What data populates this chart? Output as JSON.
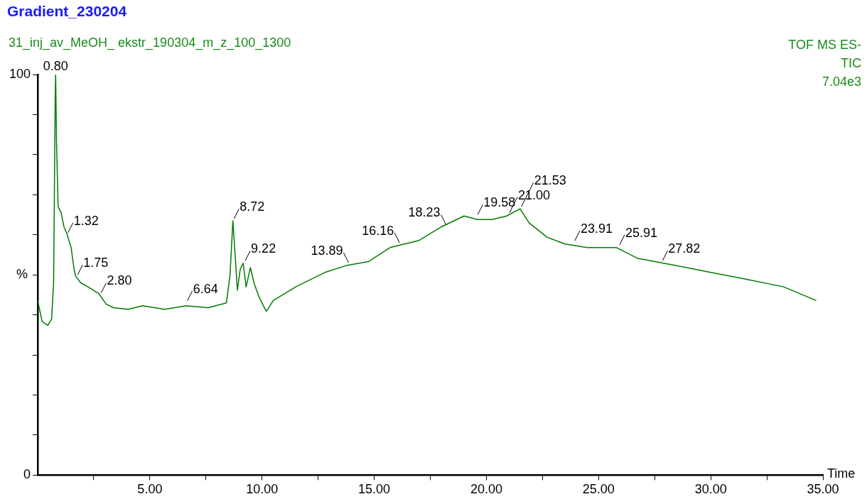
{
  "chart_data": {
    "type": "line",
    "title": "Gradient_230204",
    "subtitle": "31_inj_av_MeOH_ ekstr_190304_m_z_100_1300",
    "xlabel": "Time",
    "ylabel": "%",
    "x": [
      0,
      0.2,
      0.45,
      0.62,
      0.71,
      0.78,
      0.8,
      0.84,
      0.91,
      1.04,
      1.17,
      1.3,
      1.49,
      1.62,
      1.69,
      1.92,
      2.24,
      2.73,
      3.05,
      3.38,
      4.03,
      4.68,
      5.65,
      6.62,
      7.6,
      8.41,
      8.57,
      8.7,
      8.8,
      8.9,
      9.03,
      9.16,
      9.29,
      9.48,
      9.64,
      9.87,
      10.19,
      10.5,
      11.5,
      12.8,
      13.8,
      14.74,
      15.7,
      17.0,
      18.0,
      19.0,
      19.6,
      20.26,
      20.9,
      21.5,
      21.9,
      22.7,
      23.5,
      24.5,
      25.8,
      26.75,
      28.4,
      30.0,
      31.6,
      33.25,
      34.7
    ],
    "series": [
      {
        "color": "#007a00",
        "values": [
          43.6,
          38.3,
          37.4,
          39,
          48,
          93.8,
          100,
          83,
          67,
          65.6,
          62,
          60.3,
          56.8,
          51.5,
          49.7,
          48,
          47,
          45.3,
          42.7,
          41.8,
          41.4,
          42.3,
          41.4,
          42.3,
          41.8,
          43,
          49.7,
          63.5,
          55,
          46.2,
          51.5,
          52.9,
          47,
          51.8,
          48,
          44.4,
          40.9,
          43.6,
          47,
          50.6,
          52.4,
          53.3,
          56.8,
          58.6,
          62,
          64.7,
          63.8,
          63.8,
          64.7,
          66.5,
          63,
          59.4,
          57.7,
          56.8,
          56.8,
          54.1,
          52.4,
          50.6,
          48.9,
          47,
          43.6
        ]
      }
    ],
    "xlim": [
      0,
      35
    ],
    "xticks": [
      {
        "value": 2.5,
        "label": null
      },
      {
        "value": 5,
        "label": "5.00"
      },
      {
        "value": 7.5,
        "label": null
      },
      {
        "value": 10,
        "label": "10.00"
      },
      {
        "value": 12.5,
        "label": null
      },
      {
        "value": 15,
        "label": "15.00"
      },
      {
        "value": 17.5,
        "label": null
      },
      {
        "value": 20,
        "label": "20.00"
      },
      {
        "value": 22.5,
        "label": null
      },
      {
        "value": 25,
        "label": "25.00"
      },
      {
        "value": 27.5,
        "label": null
      },
      {
        "value": 30,
        "label": "30.00"
      },
      {
        "value": 32.5,
        "label": null
      },
      {
        "value": 35,
        "label": "35.00"
      }
    ],
    "ylim": [
      0,
      100
    ],
    "yticks": [
      0,
      {
        "value": 10,
        "label": null
      },
      {
        "value": 20,
        "label": null
      },
      {
        "value": 30,
        "label": null
      },
      {
        "value": 40,
        "label": null
      },
      {
        "value": 50,
        "label": null
      },
      {
        "value": 60,
        "label": null
      },
      {
        "value": 70,
        "label": null
      },
      {
        "value": 80,
        "label": null
      },
      {
        "value": 90,
        "label": null
      },
      100
    ],
    "grid": false,
    "legend": false,
    "marker": "none",
    "line_style": "solid",
    "annotations": [
      "TOF MS ES-",
      "TIC",
      "7.04e3",
      {
        "text": "0.80",
        "x": 0.8,
        "y": 100
      },
      {
        "text": "1.32",
        "x": 1.32,
        "y": 60
      },
      {
        "text": "1.75",
        "x": 1.75,
        "y": 49.5
      },
      {
        "text": "2.80",
        "x": 2.8,
        "y": 45
      },
      {
        "text": "6.64",
        "x": 6.64,
        "y": 43
      },
      {
        "text": "8.72",
        "x": 8.72,
        "y": 63.5
      },
      {
        "text": "9.22",
        "x": 9.22,
        "y": 53
      },
      {
        "text": "13.89",
        "x": 13.89,
        "y": 52.5
      },
      {
        "text": "16.16",
        "x": 16.16,
        "y": 57.5
      },
      {
        "text": "18.23",
        "x": 18.23,
        "y": 62
      },
      {
        "text": "19.58",
        "x": 19.58,
        "y": 64.5
      },
      {
        "text": "21.00",
        "x": 21.0,
        "y": 65
      },
      {
        "text": "21.53",
        "x": 21.53,
        "y": 66.5
      },
      {
        "text": "23.91",
        "x": 23.91,
        "y": 58
      },
      {
        "text": "25.91",
        "x": 25.91,
        "y": 57
      },
      {
        "text": "27.82",
        "x": 27.82,
        "y": 53
      }
    ]
  }
}
